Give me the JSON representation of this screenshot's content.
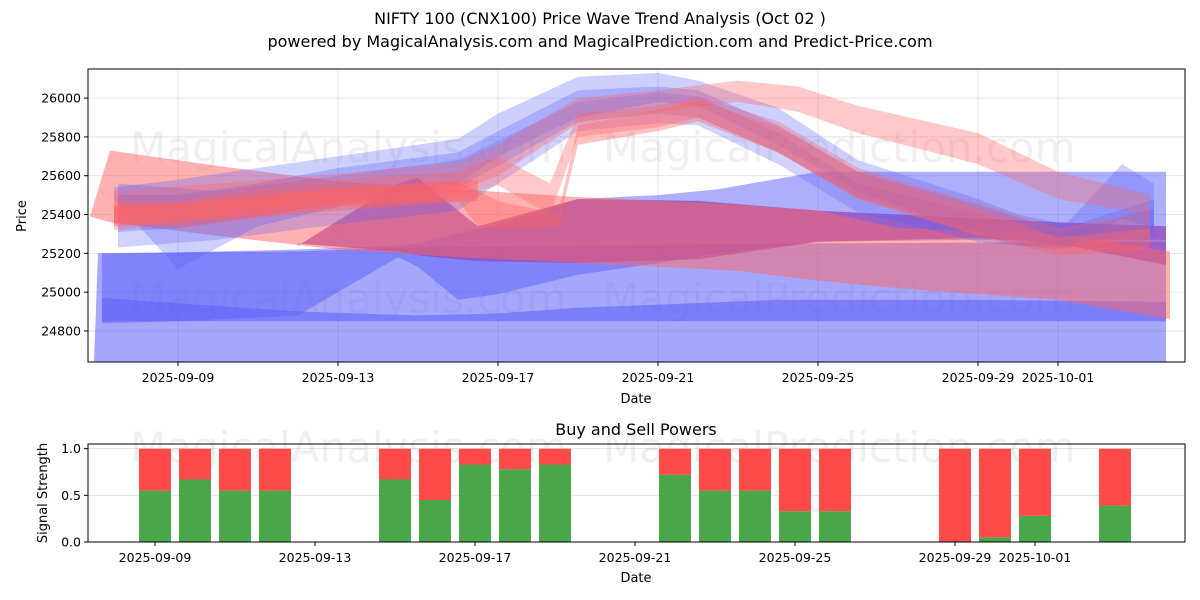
{
  "header": {
    "title": "NIFTY 100 (CNX100) Price Wave Trend Analysis (Oct 02 )",
    "subtitle": "powered by MagicalAnalysis.com and MagicalPrediction.com and Predict-Price.com"
  },
  "watermarks": [
    "MagicalAnalysis.com",
    "MagicalPrediction.com"
  ],
  "colors": {
    "buy": "#4aa64a",
    "sell": "#ff4a4a",
    "blue_band": "#6f73f8",
    "red_band": "#ff6b6b",
    "grid": "#dddddd"
  },
  "chart_data": [
    {
      "type": "area",
      "title": "",
      "xlabel": "Date",
      "ylabel": "Price",
      "ylim": [
        24640,
        26150
      ],
      "xlim": [
        "2025-09-06T18:00",
        "2025-10-04T05:00"
      ],
      "start_date": "2025-09-07",
      "yticks": [
        24800,
        25000,
        25200,
        25400,
        25600,
        25800,
        26000
      ],
      "xticks": [
        {
          "label": "2025-09-09",
          "day": 2
        },
        {
          "label": "2025-09-13",
          "day": 6
        },
        {
          "label": "2025-09-17",
          "day": 10
        },
        {
          "label": "2025-09-21",
          "day": 14
        },
        {
          "label": "2025-09-25",
          "day": 18
        },
        {
          "label": "2025-09-29",
          "day": 22
        },
        {
          "label": "2025-10-01",
          "day": 24
        }
      ],
      "grid": true,
      "bands": [
        {
          "name": "blue-base-band",
          "color": "blue",
          "opacity": 0.55,
          "days": [
            -0.1,
            0.0,
            5,
            8,
            12,
            17,
            26.7,
            26.7
          ],
          "upper": [
            24640,
            25200,
            25210,
            25230,
            25240,
            25250,
            25260,
            25260
          ],
          "lower": [
            24640,
            24640,
            24640,
            24640,
            24640,
            24640,
            24640,
            24640
          ]
        },
        {
          "name": "blue-lower-band",
          "color": "blue",
          "opacity": 0.55,
          "days": [
            0.1,
            5,
            8,
            10,
            12,
            17,
            22,
            26.7
          ],
          "upper": [
            24970,
            24900,
            24880,
            24890,
            24920,
            24960,
            24960,
            24950
          ],
          "lower": [
            24850,
            24850,
            24850,
            24850,
            24850,
            24850,
            24850,
            24850
          ]
        },
        {
          "name": "blue-mid-band",
          "color": "blue",
          "opacity": 0.5,
          "days": [
            0.1,
            2,
            5,
            7.5,
            8,
            9,
            10,
            12,
            14,
            15.5,
            18,
            22,
            24,
            26.7
          ],
          "upper": [
            25200,
            25205,
            25220,
            25240,
            25250,
            25300,
            25350,
            25480,
            25500,
            25530,
            25620,
            25620,
            25620,
            25620
          ],
          "lower": [
            24840,
            24850,
            24880,
            25180,
            25130,
            24960,
            24990,
            25090,
            25150,
            25200,
            25260,
            25270,
            25270,
            25270
          ]
        },
        {
          "name": "purple-band",
          "color": "purple",
          "opacity": 0.75,
          "days": [
            5,
            7.5,
            8,
            9,
            9.5,
            12,
            15,
            18,
            22,
            24,
            26.7
          ],
          "upper": [
            25240,
            25560,
            25590,
            25420,
            25340,
            25480,
            25470,
            25420,
            25380,
            25360,
            25340
          ],
          "lower": [
            25250,
            25210,
            25190,
            25170,
            25160,
            25150,
            25170,
            25260,
            25280,
            25250,
            25140
          ]
        },
        {
          "name": "red-wide-band",
          "color": "red",
          "opacity": 0.5,
          "days": [
            -0.2,
            0.3,
            3,
            6,
            9,
            12,
            16,
            18,
            20,
            24,
            26.8
          ],
          "upper": [
            25390,
            25730,
            25650,
            25570,
            25530,
            25490,
            25450,
            25420,
            25330,
            25300,
            25210
          ],
          "lower": [
            25390,
            25360,
            25290,
            25220,
            25180,
            25150,
            25110,
            25060,
            25020,
            24960,
            24860
          ]
        },
        {
          "name": "blue-wave-upper",
          "color": "blue",
          "opacity": 0.3,
          "days": [
            0.4,
            2,
            4,
            6,
            9,
            10,
            12,
            14,
            15,
            17,
            19,
            22,
            23,
            24.2,
            25.6,
            26.4
          ],
          "upper": [
            25540,
            25580,
            25640,
            25700,
            25790,
            25920,
            26110,
            26130,
            26090,
            25950,
            25680,
            25480,
            25400,
            25350,
            25660,
            25560
          ],
          "lower": [
            25480,
            25120,
            25340,
            25440,
            25560,
            25700,
            25900,
            25980,
            25960,
            25760,
            25520,
            25300,
            25240,
            25230,
            25380,
            25330
          ]
        },
        {
          "name": "blue-wave-mid",
          "color": "blue",
          "opacity": 0.3,
          "days": [
            0.5,
            2,
            4,
            6,
            9,
            10,
            12,
            14,
            15,
            17,
            19,
            22,
            24,
            26.4
          ],
          "upper": [
            25500,
            25500,
            25560,
            25640,
            25720,
            25830,
            26040,
            26060,
            26040,
            25860,
            25620,
            25450,
            25320,
            25480
          ],
          "lower": [
            25310,
            25330,
            25390,
            25460,
            25540,
            25650,
            25880,
            25920,
            25900,
            25720,
            25490,
            25310,
            25240,
            25290
          ]
        },
        {
          "name": "blue-wave-low",
          "color": "blue",
          "opacity": 0.28,
          "days": [
            0.5,
            3,
            6,
            9,
            10,
            12,
            14,
            15,
            17,
            19,
            22,
            24,
            26.4
          ],
          "upper": [
            25560,
            25520,
            25600,
            25680,
            25780,
            25980,
            26030,
            26010,
            25820,
            25560,
            25400,
            25300,
            25430
          ],
          "lower": [
            25230,
            25270,
            25350,
            25420,
            25560,
            25830,
            25870,
            25860,
            25660,
            25410,
            25260,
            25220,
            25320
          ]
        },
        {
          "name": "red-wave-top",
          "color": "red",
          "opacity": 0.35,
          "days": [
            0.4,
            3,
            6,
            9,
            10,
            12,
            14,
            16,
            17.5,
            19,
            22,
            24,
            26.3
          ],
          "upper": [
            25520,
            25560,
            25610,
            25670,
            25760,
            26000,
            26040,
            26090,
            26060,
            25960,
            25820,
            25620,
            25500
          ],
          "lower": [
            25350,
            25400,
            25460,
            25520,
            25600,
            25870,
            25930,
            25980,
            25930,
            25820,
            25660,
            25480,
            25400
          ]
        },
        {
          "name": "red-wave-mid",
          "color": "red",
          "opacity": 0.35,
          "days": [
            0.4,
            2,
            4,
            6,
            9,
            10,
            11.3,
            12,
            14,
            15,
            17,
            19,
            22,
            24,
            26.3
          ],
          "upper": [
            25480,
            25470,
            25540,
            25580,
            25620,
            25700,
            25560,
            25920,
            25960,
            26010,
            25880,
            25640,
            25460,
            25330,
            25420
          ],
          "lower": [
            25320,
            25350,
            25400,
            25450,
            25490,
            25550,
            25400,
            25800,
            25850,
            25900,
            25720,
            25480,
            25300,
            25220,
            25290
          ]
        },
        {
          "name": "red-wave-low",
          "color": "red",
          "opacity": 0.4,
          "days": [
            0.4,
            2,
            4,
            6,
            9,
            9.5,
            10,
            11.5,
            12,
            14,
            15,
            17,
            19,
            22,
            24,
            26.3
          ],
          "upper": [
            25450,
            25450,
            25500,
            25540,
            25570,
            25520,
            25470,
            25400,
            25860,
            25940,
            25990,
            25850,
            25620,
            25430,
            25280,
            25330
          ],
          "lower": [
            25360,
            25330,
            25380,
            25440,
            25470,
            25340,
            25330,
            25340,
            25760,
            25830,
            25880,
            25720,
            25480,
            25290,
            25190,
            25220
          ]
        },
        {
          "name": "red-core-band",
          "color": "red",
          "opacity": 0.45,
          "days": [
            0.4,
            2,
            4,
            6,
            8,
            9.5
          ],
          "upper": [
            25440,
            25460,
            25500,
            25530,
            25560,
            25580
          ],
          "lower": [
            25340,
            25360,
            25390,
            25420,
            25450,
            25470
          ]
        }
      ]
    },
    {
      "type": "bar",
      "title": "Buy and Sell Powers",
      "xlabel": "Date",
      "ylabel": "Signal Strength",
      "ylim": [
        0,
        1.05
      ],
      "yticks": [
        "0.0",
        "0.5",
        "1.0"
      ],
      "xticks": [
        {
          "label": "2025-09-09",
          "day": 2
        },
        {
          "label": "2025-09-13",
          "day": 6
        },
        {
          "label": "2025-09-17",
          "day": 10
        },
        {
          "label": "2025-09-21",
          "day": 14
        },
        {
          "label": "2025-09-25",
          "day": 18
        },
        {
          "label": "2025-09-29",
          "day": 22
        },
        {
          "label": "2025-10-01",
          "day": 24
        }
      ],
      "categories": [
        "2025-09-09",
        "2025-09-10",
        "2025-09-11",
        "2025-09-12",
        "2025-09-15",
        "2025-09-16",
        "2025-09-17",
        "2025-09-18",
        "2025-09-19",
        "2025-09-22",
        "2025-09-23",
        "2025-09-24",
        "2025-09-25",
        "2025-09-26",
        "2025-09-29",
        "2025-09-30",
        "2025-10-01",
        "2025-10-03"
      ],
      "days": [
        2,
        3,
        4,
        5,
        8,
        9,
        10,
        11,
        12,
        15,
        16,
        17,
        18,
        19,
        22,
        23,
        24,
        26
      ],
      "series": [
        {
          "name": "Buy",
          "color": "#4aa64a",
          "values": [
            0.55,
            0.67,
            0.55,
            0.55,
            0.67,
            0.45,
            0.83,
            0.78,
            0.83,
            0.72,
            0.55,
            0.55,
            0.33,
            0.33,
            0.0,
            0.05,
            0.28,
            0.39
          ]
        },
        {
          "name": "Sell",
          "color": "#ff4a4a",
          "values": [
            0.45,
            0.33,
            0.45,
            0.45,
            0.33,
            0.55,
            0.17,
            0.22,
            0.17,
            0.28,
            0.45,
            0.45,
            0.67,
            0.67,
            1.0,
            0.95,
            0.72,
            0.61
          ]
        }
      ],
      "grid": true
    }
  ]
}
